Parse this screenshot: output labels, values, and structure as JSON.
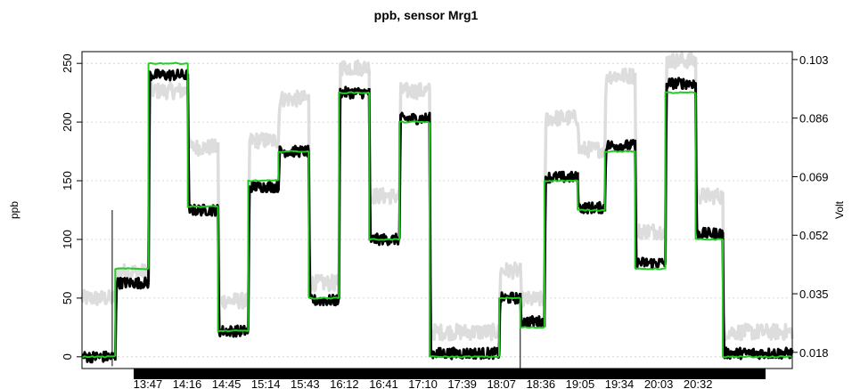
{
  "chart_data": {
    "type": "line",
    "title": "ppb, sensor Mrg1",
    "ylabel_left": "ppb",
    "ylabel_right": "Volt",
    "ylim_left": [
      -10,
      260
    ],
    "ylim_right": [
      0.0133,
      0.1053
    ],
    "yticks_left": [
      "0",
      "50",
      "100",
      "150",
      "200",
      "250"
    ],
    "yticks_right": [
      "0.018",
      "0.035",
      "0.052",
      "0.069",
      "0.086",
      "0.103"
    ],
    "xticks": [
      "13:47",
      "14:16",
      "14:45",
      "15:14",
      "15:43",
      "16:12",
      "16:41",
      "17:10",
      "17:39",
      "18:07",
      "18:36",
      "19:05",
      "19:34",
      "20:03",
      "20:32"
    ],
    "grid": true,
    "colors": {
      "reference": "#22cc22",
      "sensor_ppb": "#000000",
      "sensor_volt": "#d9d9d9",
      "grid": "#cccccc"
    },
    "series": [
      {
        "name": "",
        "role": "reference",
        "segments": [
          [
            0,
            0
          ],
          [
            1.1,
            75
          ],
          [
            2.2,
            250
          ],
          [
            3.5,
            128
          ],
          [
            4.5,
            22
          ],
          [
            5.5,
            150
          ],
          [
            6.5,
            175
          ],
          [
            7.5,
            50
          ],
          [
            8.5,
            225
          ],
          [
            9.5,
            100
          ],
          [
            10.5,
            200
          ],
          [
            11.5,
            0
          ],
          [
            13.8,
            50
          ],
          [
            14.5,
            25
          ],
          [
            15.3,
            150
          ],
          [
            16.4,
            125
          ],
          [
            17.3,
            175
          ],
          [
            18.3,
            75
          ],
          [
            19.3,
            225
          ],
          [
            20.3,
            100
          ],
          [
            21.2,
            0
          ]
        ],
        "end": 23.5
      },
      {
        "name": "",
        "role": "sensor_ppb",
        "segments": [
          [
            0,
            0
          ],
          [
            1.1,
            63
          ],
          [
            2.2,
            240
          ],
          [
            3.5,
            125
          ],
          [
            4.5,
            22
          ],
          [
            5.5,
            145
          ],
          [
            6.5,
            175
          ],
          [
            7.5,
            48
          ],
          [
            8.5,
            225
          ],
          [
            9.5,
            100
          ],
          [
            10.5,
            203
          ],
          [
            11.5,
            3
          ],
          [
            13.8,
            50
          ],
          [
            14.5,
            30
          ],
          [
            15.3,
            153
          ],
          [
            16.4,
            127
          ],
          [
            17.3,
            180
          ],
          [
            18.3,
            80
          ],
          [
            19.3,
            233
          ],
          [
            20.3,
            105
          ],
          [
            21.2,
            3
          ]
        ],
        "end": 23.5
      },
      {
        "name": "",
        "role": "sensor_volt",
        "segments": [
          [
            0,
            0.0337
          ],
          [
            1.1,
            0.0414
          ],
          [
            2.2,
            0.0939
          ],
          [
            3.5,
            0.0775
          ],
          [
            4.5,
            0.033
          ],
          [
            5.5,
            0.0795
          ],
          [
            6.5,
            0.0916
          ],
          [
            7.5,
            0.0381
          ],
          [
            8.5,
            0.1007
          ],
          [
            9.5,
            0.0634
          ],
          [
            10.5,
            0.0939
          ],
          [
            11.5,
            0.0239
          ],
          [
            13.8,
            0.0417
          ],
          [
            14.5,
            0.0333
          ],
          [
            15.3,
            0.086
          ],
          [
            16.4,
            0.0769
          ],
          [
            17.3,
            0.0983
          ],
          [
            18.3,
            0.0532
          ],
          [
            19.3,
            0.1027
          ],
          [
            20.3,
            0.0634
          ],
          [
            21.2,
            0.0239
          ]
        ],
        "end": 23.5
      }
    ]
  }
}
